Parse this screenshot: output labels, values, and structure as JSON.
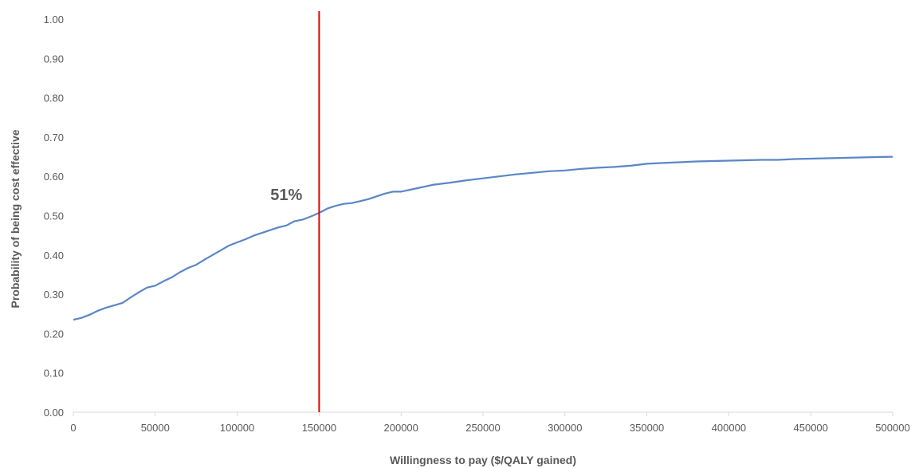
{
  "chart_data": {
    "type": "line",
    "title": "",
    "xlabel": "Willingness to pay ($/QALY gained)",
    "ylabel": "Probability of being cost effective",
    "xlim": [
      0,
      500000
    ],
    "ylim": [
      0,
      1
    ],
    "x_ticks": [
      0,
      50000,
      100000,
      150000,
      200000,
      250000,
      300000,
      350000,
      400000,
      450000,
      500000
    ],
    "x_tick_labels": [
      "0",
      "50000",
      "100000",
      "150000",
      "200000",
      "250000",
      "300000",
      "350000",
      "400000",
      "450000",
      "500000"
    ],
    "y_ticks": [
      0,
      0.1,
      0.2,
      0.3,
      0.4,
      0.5,
      0.6,
      0.7,
      0.8,
      0.9,
      1.0
    ],
    "y_tick_labels": [
      "0.00",
      "0.10",
      "0.20",
      "0.30",
      "0.40",
      "0.50",
      "0.60",
      "0.70",
      "0.80",
      "0.90",
      "1.00"
    ],
    "grid": false,
    "legend": "none",
    "series": [
      {
        "color": "#5b86c5",
        "x": [
          0,
          5000,
          10000,
          15000,
          20000,
          25000,
          30000,
          35000,
          40000,
          45000,
          50000,
          55000,
          60000,
          65000,
          70000,
          75000,
          80000,
          85000,
          90000,
          95000,
          100000,
          105000,
          110000,
          115000,
          120000,
          125000,
          130000,
          135000,
          140000,
          145000,
          150000,
          155000,
          160000,
          165000,
          170000,
          175000,
          180000,
          185000,
          190000,
          195000,
          200000,
          210000,
          220000,
          230000,
          240000,
          250000,
          260000,
          270000,
          280000,
          290000,
          300000,
          310000,
          320000,
          330000,
          340000,
          350000,
          360000,
          370000,
          380000,
          390000,
          400000,
          410000,
          420000,
          430000,
          440000,
          450000,
          460000,
          470000,
          480000,
          490000,
          500000
        ],
        "y": [
          0.235,
          0.24,
          0.248,
          0.258,
          0.266,
          0.272,
          0.278,
          0.292,
          0.305,
          0.317,
          0.322,
          0.333,
          0.343,
          0.356,
          0.367,
          0.375,
          0.388,
          0.4,
          0.412,
          0.424,
          0.432,
          0.44,
          0.449,
          0.456,
          0.463,
          0.47,
          0.475,
          0.486,
          0.49,
          0.498,
          0.507,
          0.518,
          0.525,
          0.53,
          0.532,
          0.537,
          0.542,
          0.549,
          0.556,
          0.561,
          0.561,
          0.57,
          0.579,
          0.584,
          0.59,
          0.595,
          0.6,
          0.605,
          0.609,
          0.613,
          0.615,
          0.619,
          0.622,
          0.624,
          0.627,
          0.632,
          0.634,
          0.636,
          0.638,
          0.639,
          0.64,
          0.641,
          0.642,
          0.642,
          0.644,
          0.645,
          0.646,
          0.647,
          0.648,
          0.649,
          0.65
        ]
      }
    ],
    "reference_line": {
      "x": 150000,
      "color": "#e00000"
    },
    "annotations": [
      {
        "text": "51%",
        "x": 130000,
        "y": 0.54
      }
    ]
  }
}
